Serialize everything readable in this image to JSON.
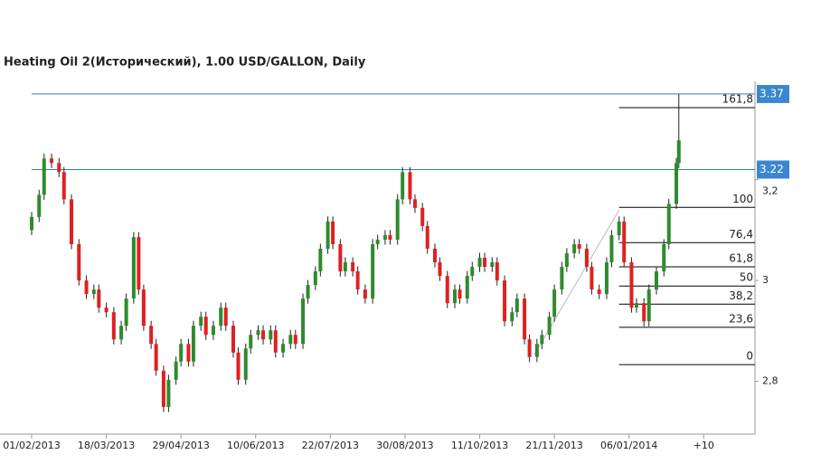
{
  "chart_data": {
    "type": "candlestick",
    "title": "Heating Oil 2(Исторический), 1.00 USD/GALLON, Daily",
    "up_color": "#2e8b2e",
    "down_color": "#e02020",
    "xlim": [
      0,
      290.6
    ],
    "ylim": [
      2.695,
      3.395
    ],
    "xticks": [
      {
        "value": 0,
        "label": "01/02/2013"
      },
      {
        "value": 30,
        "label": "18/03/2013"
      },
      {
        "value": 60,
        "label": "29/04/2013"
      },
      {
        "value": 90,
        "label": "10/06/2013"
      },
      {
        "value": 120,
        "label": "22/07/2013"
      },
      {
        "value": 150,
        "label": "30/08/2013"
      },
      {
        "value": 180,
        "label": "11/10/2013"
      },
      {
        "value": 210,
        "label": "21/11/2013"
      },
      {
        "value": 240,
        "label": "06/01/2014"
      },
      {
        "value": 270,
        "label": "+10"
      }
    ],
    "yticks": [
      {
        "value": 3.2,
        "label": "3,2"
      },
      3,
      {
        "value": 2.8,
        "label": "2,8"
      }
    ],
    "price_lines": [
      3.37,
      3.22
    ],
    "fib_levels": [
      {
        "value": 161.8,
        "label": "161,8"
      },
      {
        "value": 100,
        "label": "100"
      },
      {
        "value": 76.4,
        "label": "76,4"
      },
      {
        "value": 61.8,
        "label": "61,8"
      },
      {
        "value": 50,
        "label": "50"
      },
      {
        "value": 38.2,
        "label": "38,2"
      },
      {
        "value": 23.6,
        "label": "23,6"
      },
      {
        "value": 0,
        "label": "0"
      }
    ],
    "fib_prices": [
      3.343,
      3.145,
      3.075,
      3.027,
      2.989,
      2.953,
      2.907,
      2.833
    ],
    "fib_anchor": {
      "x": [
        202,
        236
      ],
      "y": [
        2.853,
        3.14
      ]
    },
    "x": [
      0,
      3,
      5,
      8,
      11,
      13,
      16,
      19,
      22,
      25,
      27,
      30,
      33,
      36,
      38,
      41,
      43,
      45,
      48,
      50,
      53,
      55,
      58,
      60,
      63,
      65,
      68,
      70,
      73,
      76,
      78,
      81,
      83,
      86,
      88,
      91,
      93,
      96,
      98,
      101,
      104,
      106,
      109,
      111,
      114,
      116,
      119,
      121,
      124,
      126,
      129,
      131,
      134,
      137,
      139,
      142,
      144,
      147,
      149,
      152,
      154,
      157,
      159,
      162,
      164,
      167,
      170,
      172,
      175,
      177,
      180,
      182,
      185,
      187,
      190,
      193,
      195,
      198,
      200,
      203,
      205,
      208,
      210,
      213,
      215,
      218,
      220,
      223,
      225,
      228,
      231,
      233,
      236,
      238,
      241,
      243,
      246,
      248,
      251,
      254,
      256,
      259,
      260
    ],
    "ohlc": [
      [
        3.1,
        3.136,
        3.09,
        3.126
      ],
      [
        3.126,
        3.18,
        3.116,
        3.17
      ],
      [
        3.17,
        3.252,
        3.16,
        3.242
      ],
      [
        3.242,
        3.252,
        3.223,
        3.233
      ],
      [
        3.233,
        3.243,
        3.205,
        3.215
      ],
      [
        3.215,
        3.225,
        3.151,
        3.161
      ],
      [
        3.161,
        3.171,
        3.062,
        3.072
      ],
      [
        3.072,
        3.082,
        2.99,
        3.0
      ],
      [
        3.0,
        3.01,
        2.963,
        2.973
      ],
      [
        2.973,
        2.992,
        2.963,
        2.982
      ],
      [
        2.982,
        2.992,
        2.936,
        2.946
      ],
      [
        2.946,
        2.956,
        2.927,
        2.937
      ],
      [
        2.937,
        2.947,
        2.873,
        2.883
      ],
      [
        2.883,
        2.92,
        2.873,
        2.91
      ],
      [
        2.91,
        2.974,
        2.9,
        2.964
      ],
      [
        2.964,
        3.096,
        2.954,
        3.086
      ],
      [
        3.086,
        3.096,
        2.972,
        2.982
      ],
      [
        2.982,
        2.992,
        2.9,
        2.91
      ],
      [
        2.91,
        2.92,
        2.864,
        2.874
      ],
      [
        2.874,
        2.884,
        2.811,
        2.821
      ],
      [
        2.821,
        2.831,
        2.739,
        2.749
      ],
      [
        2.749,
        2.813,
        2.739,
        2.803
      ],
      [
        2.803,
        2.849,
        2.793,
        2.839
      ],
      [
        2.839,
        2.884,
        2.829,
        2.874
      ],
      [
        2.874,
        2.884,
        2.829,
        2.839
      ],
      [
        2.839,
        2.92,
        2.829,
        2.91
      ],
      [
        2.91,
        2.938,
        2.9,
        2.928
      ],
      [
        2.928,
        2.938,
        2.882,
        2.892
      ],
      [
        2.892,
        2.92,
        2.882,
        2.91
      ],
      [
        2.91,
        2.956,
        2.9,
        2.946
      ],
      [
        2.946,
        2.956,
        2.9,
        2.91
      ],
      [
        2.91,
        2.92,
        2.847,
        2.857
      ],
      [
        2.857,
        2.867,
        2.793,
        2.803
      ],
      [
        2.803,
        2.875,
        2.793,
        2.865
      ],
      [
        2.865,
        2.902,
        2.855,
        2.892
      ],
      [
        2.892,
        2.911,
        2.882,
        2.901
      ],
      [
        2.901,
        2.911,
        2.873,
        2.883
      ],
      [
        2.883,
        2.911,
        2.873,
        2.901
      ],
      [
        2.901,
        2.911,
        2.847,
        2.857
      ],
      [
        2.857,
        2.884,
        2.847,
        2.874
      ],
      [
        2.874,
        2.902,
        2.864,
        2.892
      ],
      [
        2.892,
        2.902,
        2.864,
        2.874
      ],
      [
        2.874,
        2.974,
        2.864,
        2.964
      ],
      [
        2.964,
        3.001,
        2.954,
        2.991
      ],
      [
        2.991,
        3.028,
        2.981,
        3.018
      ],
      [
        3.018,
        3.073,
        3.008,
        3.063
      ],
      [
        3.063,
        3.127,
        3.053,
        3.117
      ],
      [
        3.117,
        3.127,
        3.062,
        3.072
      ],
      [
        3.072,
        3.082,
        3.008,
        3.018
      ],
      [
        3.018,
        3.046,
        3.008,
        3.036
      ],
      [
        3.036,
        3.046,
        3.008,
        3.018
      ],
      [
        3.018,
        3.028,
        2.972,
        2.982
      ],
      [
        2.982,
        2.992,
        2.954,
        2.964
      ],
      [
        2.964,
        3.082,
        2.954,
        3.072
      ],
      [
        3.072,
        3.091,
        3.062,
        3.081
      ],
      [
        3.081,
        3.1,
        3.071,
        3.09
      ],
      [
        3.09,
        3.1,
        3.071,
        3.081
      ],
      [
        3.081,
        3.171,
        3.071,
        3.161
      ],
      [
        3.161,
        3.225,
        3.151,
        3.215
      ],
      [
        3.215,
        3.225,
        3.151,
        3.161
      ],
      [
        3.161,
        3.171,
        3.134,
        3.144
      ],
      [
        3.144,
        3.154,
        3.098,
        3.108
      ],
      [
        3.108,
        3.118,
        3.053,
        3.063
      ],
      [
        3.063,
        3.073,
        3.026,
        3.036
      ],
      [
        3.036,
        3.046,
        2.999,
        3.009
      ],
      [
        3.009,
        3.019,
        2.945,
        2.955
      ],
      [
        2.955,
        2.992,
        2.945,
        2.982
      ],
      [
        2.982,
        2.992,
        2.954,
        2.964
      ],
      [
        2.964,
        3.019,
        2.954,
        3.009
      ],
      [
        3.009,
        3.037,
        2.999,
        3.027
      ],
      [
        3.027,
        3.055,
        3.017,
        3.045
      ],
      [
        3.045,
        3.055,
        3.017,
        3.027
      ],
      [
        3.027,
        3.046,
        3.017,
        3.036
      ],
      [
        3.036,
        3.046,
        2.99,
        3.0
      ],
      [
        3.0,
        3.01,
        2.909,
        2.919
      ],
      [
        2.919,
        2.947,
        2.909,
        2.937
      ],
      [
        2.937,
        2.974,
        2.927,
        2.964
      ],
      [
        2.964,
        2.974,
        2.873,
        2.883
      ],
      [
        2.883,
        2.893,
        2.838,
        2.848
      ],
      [
        2.848,
        2.884,
        2.838,
        2.874
      ],
      [
        2.874,
        2.902,
        2.864,
        2.892
      ],
      [
        2.892,
        2.938,
        2.882,
        2.928
      ],
      [
        2.928,
        2.992,
        2.918,
        2.982
      ],
      [
        2.982,
        3.037,
        2.972,
        3.027
      ],
      [
        3.027,
        3.064,
        3.017,
        3.054
      ],
      [
        3.054,
        3.082,
        3.044,
        3.072
      ],
      [
        3.072,
        3.082,
        3.053,
        3.063
      ],
      [
        3.063,
        3.073,
        3.017,
        3.027
      ],
      [
        3.027,
        3.037,
        2.972,
        2.982
      ],
      [
        2.982,
        2.992,
        2.963,
        2.973
      ],
      [
        2.973,
        3.046,
        2.963,
        3.036
      ],
      [
        3.036,
        3.1,
        3.026,
        3.09
      ],
      [
        3.09,
        3.127,
        3.08,
        3.117
      ],
      [
        3.117,
        3.127,
        3.026,
        3.036
      ],
      [
        3.036,
        3.046,
        2.936,
        2.946
      ],
      [
        2.946,
        2.965,
        2.936,
        2.955
      ],
      [
        2.955,
        2.965,
        2.909,
        2.919
      ],
      [
        2.919,
        2.992,
        2.909,
        2.982
      ],
      [
        2.982,
        3.028,
        2.972,
        3.018
      ],
      [
        3.018,
        3.082,
        3.008,
        3.072
      ],
      [
        3.072,
        3.162,
        3.062,
        3.152
      ],
      [
        3.152,
        3.243,
        3.142,
        3.233
      ],
      [
        3.233,
        3.37,
        3.223,
        3.278
      ]
    ]
  }
}
